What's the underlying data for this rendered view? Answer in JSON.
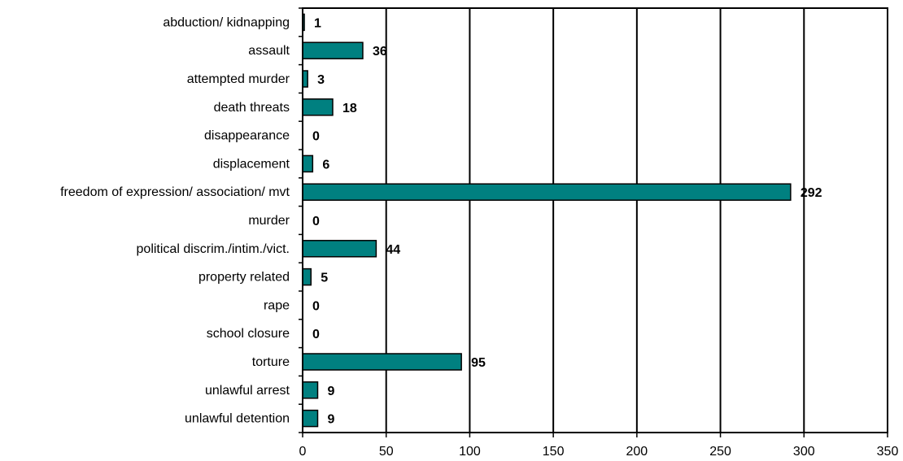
{
  "colors": {
    "bar": "#008080",
    "bar_stroke": "#000000",
    "grid": "#000000"
  },
  "chart_data": {
    "type": "bar",
    "orientation": "horizontal",
    "categories": [
      "abduction/ kidnapping",
      "assault",
      "attempted murder",
      "death threats",
      "disappearance",
      "displacement",
      "freedom of expression/ association/ mvt",
      "murder",
      "political discrim./intim./vict.",
      "property related",
      "rape",
      "school closure",
      "torture",
      "unlawful arrest",
      "unlawful detention"
    ],
    "values": [
      1,
      36,
      3,
      18,
      0,
      6,
      292,
      0,
      44,
      5,
      0,
      0,
      95,
      9,
      9
    ],
    "data_labels": [
      "1",
      "36",
      "3",
      "18",
      "0",
      "6",
      "292",
      "0",
      "44",
      "5",
      "0",
      "0",
      "95",
      "9",
      "9"
    ],
    "xlim": [
      0,
      350
    ],
    "xticks": [
      0,
      50,
      100,
      150,
      200,
      250,
      300,
      350
    ],
    "xtick_labels": [
      "0",
      "50",
      "100",
      "150",
      "200",
      "250",
      "300",
      "350"
    ],
    "grid": "vertical",
    "legend": "none"
  }
}
